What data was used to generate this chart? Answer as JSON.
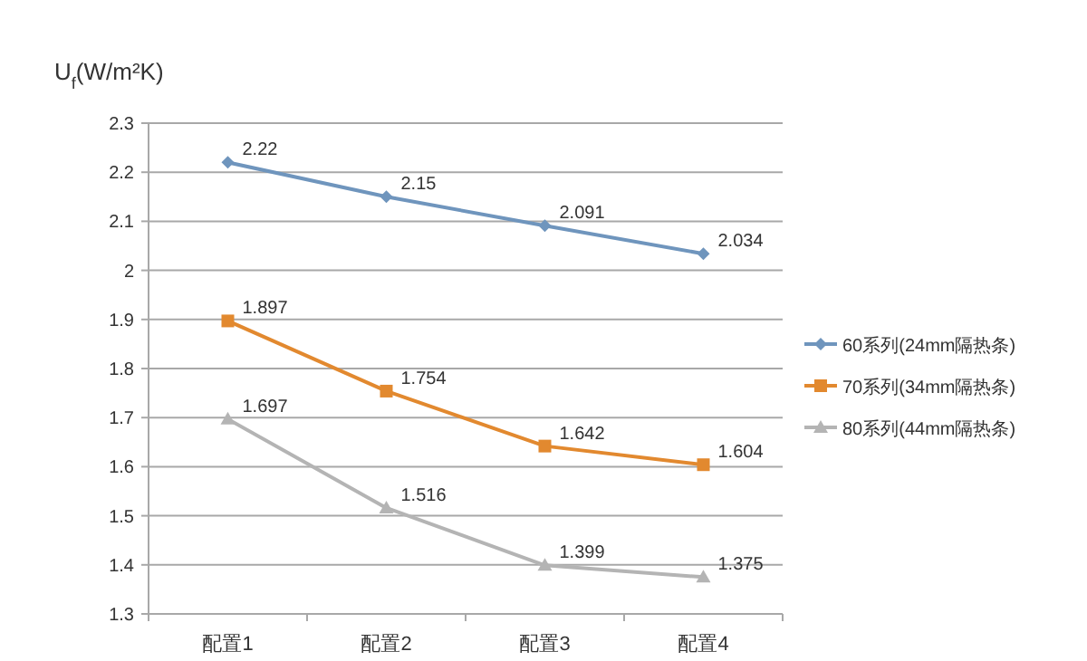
{
  "chart_data": {
    "type": "line",
    "ylabel": "U$_{f}$(W/m²K)",
    "categories": [
      "配置1",
      "配置2",
      "配置3",
      "配置4"
    ],
    "series": [
      {
        "name": "60系列(24mm隔热条)",
        "color": "#6f95bd",
        "marker": "diamond",
        "values": [
          2.22,
          2.15,
          2.091,
          2.034
        ]
      },
      {
        "name": "70系列(34mm隔热条)",
        "color": "#e2892f",
        "marker": "square",
        "values": [
          1.897,
          1.754,
          1.642,
          1.604
        ]
      },
      {
        "name": "80系列(44mm隔热条)",
        "color": "#b4b4b4",
        "marker": "triangle",
        "values": [
          1.697,
          1.516,
          1.399,
          1.375
        ]
      }
    ],
    "ylim": [
      1.3,
      2.3
    ],
    "yticks": [
      1.3,
      1.4,
      1.5,
      1.6,
      1.7,
      1.8,
      1.9,
      2,
      2.1,
      2.2,
      2.3
    ],
    "grid": "y",
    "legend": "right",
    "data_labels": true
  }
}
